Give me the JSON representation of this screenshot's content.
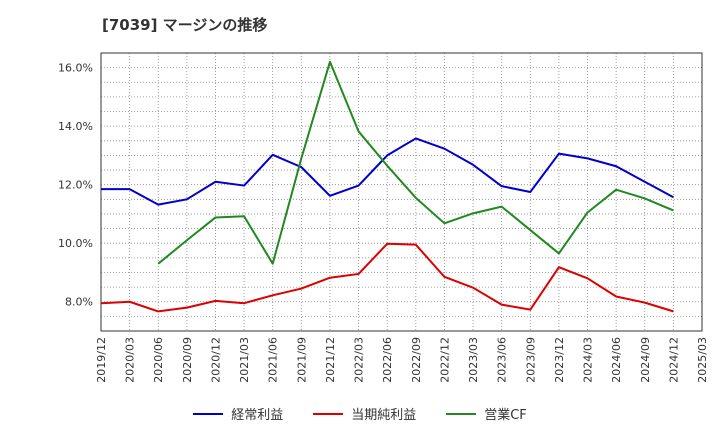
{
  "title": "[7039]  マージンの推移",
  "chart_data": {
    "type": "line",
    "title": "[7039]  マージンの推移",
    "xlabel": "",
    "ylabel": "",
    "x": [
      "2019/12",
      "2020/03",
      "2020/06",
      "2020/09",
      "2020/12",
      "2021/03",
      "2021/06",
      "2021/09",
      "2021/12",
      "2022/03",
      "2022/06",
      "2022/09",
      "2022/12",
      "2023/03",
      "2023/06",
      "2023/09",
      "2023/12",
      "2024/03",
      "2024/06",
      "2024/09",
      "2024/12",
      "2025/03"
    ],
    "ylim": [
      7.0,
      16.5
    ],
    "yticks": [
      8.0,
      10.0,
      12.0,
      14.0,
      16.0
    ],
    "ytick_labels": [
      "8.0%",
      "10.0%",
      "12.0%",
      "14.0%",
      "16.0%"
    ],
    "grid": true,
    "legend_position": "bottom",
    "series": [
      {
        "name": "経常利益",
        "color": "#0000cc",
        "values": [
          11.85,
          11.85,
          11.32,
          11.5,
          12.1,
          11.97,
          13.02,
          12.6,
          11.62,
          11.97,
          13.0,
          13.58,
          13.23,
          12.68,
          11.95,
          11.75,
          13.06,
          12.9,
          12.63,
          12.1,
          11.57,
          null
        ]
      },
      {
        "name": "当期純利益",
        "color": "#dd0000",
        "values": [
          7.95,
          8.0,
          7.67,
          7.8,
          8.03,
          7.95,
          8.22,
          8.45,
          8.82,
          8.95,
          9.98,
          9.95,
          8.85,
          8.48,
          7.9,
          7.73,
          9.18,
          8.8,
          8.18,
          7.97,
          7.67,
          null
        ]
      },
      {
        "name": "営業CF",
        "color": "#228822",
        "values": [
          null,
          null,
          9.3,
          10.1,
          10.88,
          10.92,
          9.3,
          12.9,
          16.2,
          13.82,
          12.65,
          11.55,
          10.68,
          11.02,
          11.25,
          10.45,
          9.65,
          11.05,
          11.83,
          11.53,
          11.12,
          null
        ]
      }
    ]
  }
}
